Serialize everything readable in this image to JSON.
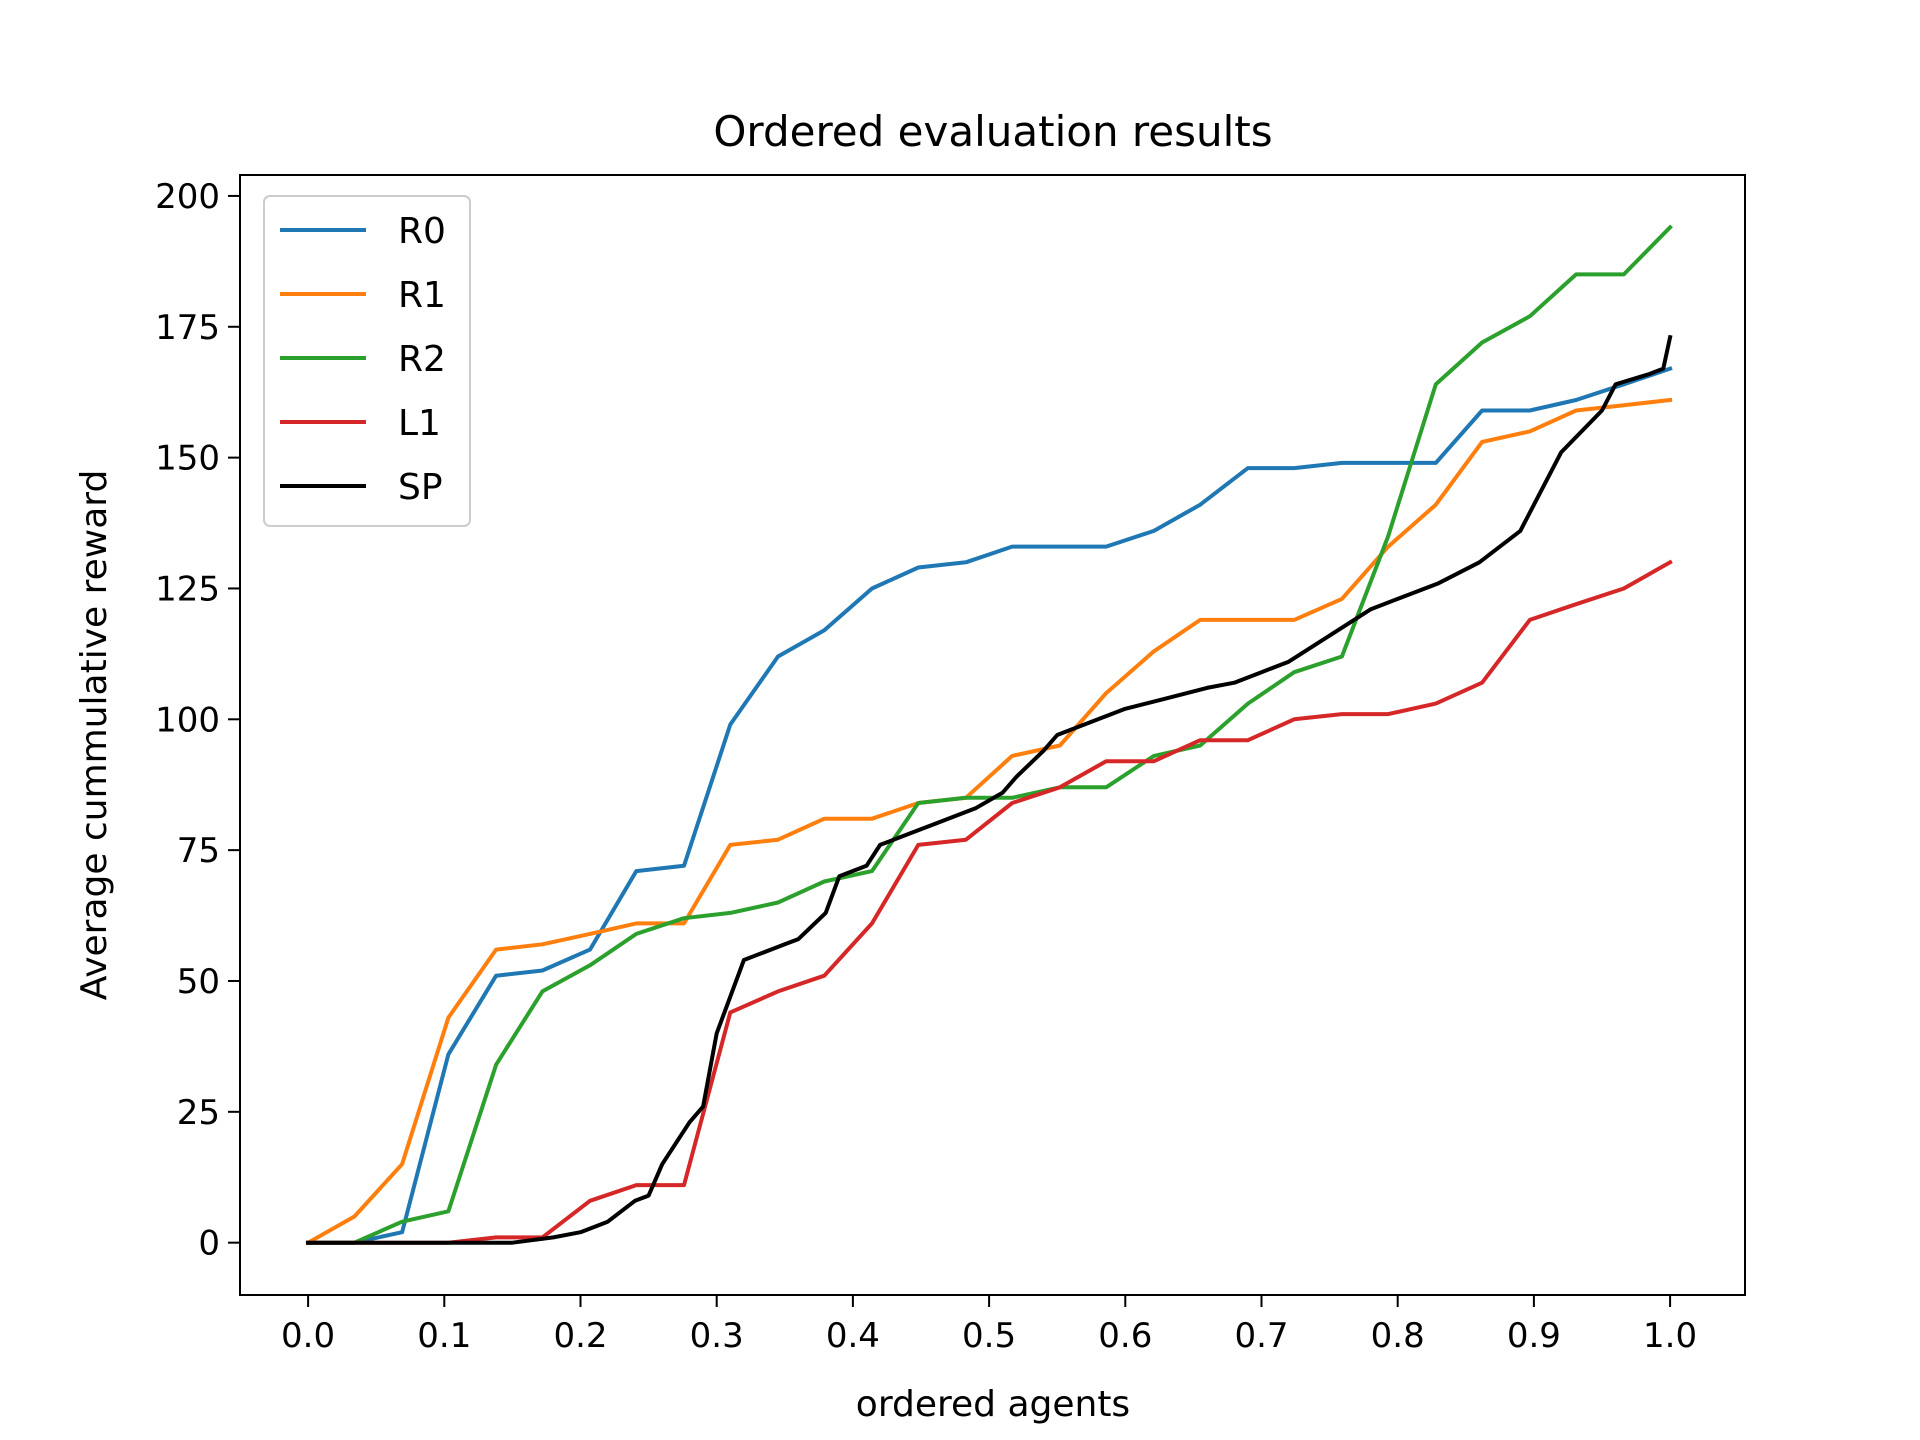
{
  "chart_data": {
    "type": "line",
    "title": "Ordered evaluation results",
    "xlabel": "ordered agents",
    "ylabel": "Average cummulative reward",
    "xlim": [
      -0.05,
      1.055
    ],
    "ylim": [
      -10,
      204
    ],
    "xticks": [
      0.0,
      0.1,
      0.2,
      0.3,
      0.4,
      0.5,
      0.6,
      0.7,
      0.8,
      0.9,
      1.0
    ],
    "xtick_labels": [
      "0.0",
      "0.1",
      "0.2",
      "0.3",
      "0.4",
      "0.5",
      "0.6",
      "0.7",
      "0.8",
      "0.9",
      "1.0"
    ],
    "yticks": [
      0,
      25,
      50,
      75,
      100,
      125,
      150,
      175,
      200
    ],
    "ytick_labels": [
      "0",
      "25",
      "50",
      "75",
      "100",
      "125",
      "150",
      "175",
      "200"
    ],
    "grid": false,
    "legend_position": "top-left",
    "series": [
      {
        "name": "R0",
        "color": "#1f77b4",
        "x": [
          0.0,
          0.034,
          0.069,
          0.103,
          0.138,
          0.172,
          0.207,
          0.241,
          0.276,
          0.31,
          0.345,
          0.379,
          0.414,
          0.448,
          0.483,
          0.517,
          0.552,
          0.586,
          0.621,
          0.655,
          0.69,
          0.724,
          0.759,
          0.793,
          0.828,
          0.862,
          0.897,
          0.931,
          0.966,
          1.0
        ],
        "y": [
          0,
          0,
          2,
          36,
          51,
          52,
          56,
          71,
          72,
          99,
          112,
          117,
          125,
          129,
          130,
          133,
          133,
          133,
          136,
          141,
          148,
          148,
          149,
          149,
          149,
          159,
          159,
          161,
          164,
          167
        ]
      },
      {
        "name": "R1",
        "color": "#ff7f0e",
        "x": [
          0.0,
          0.034,
          0.069,
          0.103,
          0.138,
          0.172,
          0.207,
          0.241,
          0.276,
          0.31,
          0.345,
          0.379,
          0.414,
          0.448,
          0.483,
          0.517,
          0.552,
          0.586,
          0.621,
          0.655,
          0.69,
          0.724,
          0.759,
          0.793,
          0.828,
          0.862,
          0.897,
          0.931,
          0.966,
          1.0
        ],
        "y": [
          0,
          5,
          15,
          43,
          56,
          57,
          59,
          61,
          61,
          76,
          77,
          81,
          81,
          84,
          85,
          93,
          95,
          105,
          113,
          119,
          119,
          119,
          123,
          133,
          141,
          153,
          155,
          159,
          160,
          161
        ]
      },
      {
        "name": "R2",
        "color": "#2ca02c",
        "x": [
          0.0,
          0.034,
          0.069,
          0.103,
          0.138,
          0.172,
          0.207,
          0.241,
          0.276,
          0.31,
          0.345,
          0.379,
          0.414,
          0.448,
          0.483,
          0.517,
          0.552,
          0.586,
          0.621,
          0.655,
          0.69,
          0.724,
          0.759,
          0.793,
          0.828,
          0.862,
          0.897,
          0.931,
          0.966,
          1.0
        ],
        "y": [
          0,
          0,
          4,
          6,
          34,
          48,
          53,
          59,
          62,
          63,
          65,
          69,
          71,
          84,
          85,
          85,
          87,
          87,
          93,
          95,
          103,
          109,
          112,
          135,
          164,
          172,
          177,
          185,
          185,
          194
        ]
      },
      {
        "name": "L1",
        "color": "#d62728",
        "x": [
          0.0,
          0.034,
          0.069,
          0.103,
          0.138,
          0.172,
          0.207,
          0.241,
          0.276,
          0.31,
          0.345,
          0.379,
          0.414,
          0.448,
          0.483,
          0.517,
          0.552,
          0.586,
          0.621,
          0.655,
          0.69,
          0.724,
          0.759,
          0.793,
          0.828,
          0.862,
          0.897,
          0.931,
          0.966,
          1.0
        ],
        "y": [
          0,
          0,
          0,
          0,
          1,
          1,
          8,
          11,
          11,
          44,
          48,
          51,
          61,
          76,
          77,
          84,
          87,
          92,
          92,
          96,
          96,
          100,
          101,
          101,
          103,
          107,
          119,
          122,
          125,
          130
        ]
      },
      {
        "name": "SP",
        "color": "#000000",
        "x": [
          0.0,
          0.05,
          0.1,
          0.15,
          0.18,
          0.2,
          0.22,
          0.24,
          0.25,
          0.26,
          0.28,
          0.29,
          0.3,
          0.32,
          0.35,
          0.36,
          0.38,
          0.39,
          0.41,
          0.42,
          0.44,
          0.46,
          0.47,
          0.49,
          0.51,
          0.52,
          0.54,
          0.55,
          0.57,
          0.6,
          0.63,
          0.66,
          0.68,
          0.7,
          0.72,
          0.75,
          0.78,
          0.8,
          0.83,
          0.86,
          0.89,
          0.92,
          0.95,
          0.96,
          0.985,
          0.995,
          1.0
        ],
        "y": [
          0,
          0,
          0,
          0,
          1,
          2,
          4,
          8,
          9,
          15,
          23,
          26,
          40,
          54,
          57,
          58,
          63,
          70,
          72,
          76,
          78,
          80,
          81,
          83,
          86,
          89,
          94,
          97,
          99,
          102,
          104,
          106,
          107,
          109,
          111,
          116,
          121,
          123,
          126,
          130,
          136,
          151,
          159,
          164,
          166,
          167,
          173
        ]
      }
    ]
  }
}
